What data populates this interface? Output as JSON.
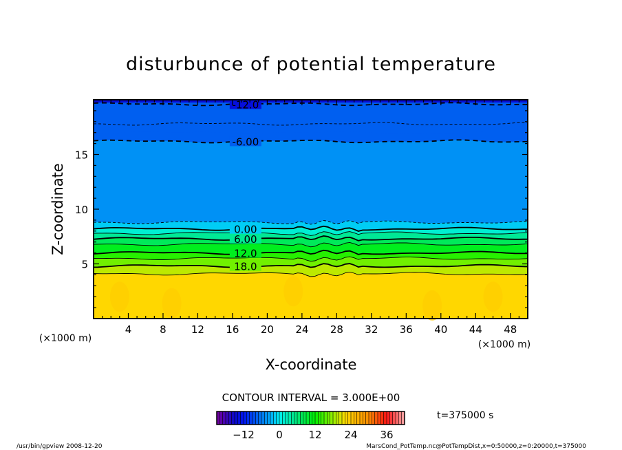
{
  "chart_data": {
    "type": "heatmap",
    "subtype": "filled-contour",
    "title": "disturbunce of potential temperature",
    "xlabel": "X-coordinate",
    "ylabel": "Z-coordinate",
    "x_unit": "(×1000 m)",
    "y_unit": "(×1000 m)",
    "xlim": [
      0,
      50
    ],
    "ylim": [
      0,
      20
    ],
    "xticks": [
      4,
      8,
      12,
      16,
      20,
      24,
      28,
      32,
      36,
      40,
      44,
      48
    ],
    "yticks": [
      5,
      10,
      15
    ],
    "contour_interval_label": "CONTOUR INTERVAL = 3.000E+00",
    "time_label": "t=375000 s",
    "contours": [
      {
        "level": -12,
        "z": 19.6,
        "dashed": true,
        "label": "-12.0"
      },
      {
        "level": -9,
        "z": 17.8,
        "dashed": true
      },
      {
        "level": -6,
        "z": 16.2,
        "dashed": true,
        "label": "-6.00"
      },
      {
        "level": -3,
        "z": 8.8,
        "dashed": true
      },
      {
        "level": 0,
        "z": 8.2,
        "dashed": false,
        "label": "0.00"
      },
      {
        "level": 3,
        "z": 7.8,
        "dashed": false
      },
      {
        "level": 6,
        "z": 7.3,
        "dashed": false,
        "label": "6.00"
      },
      {
        "level": 9,
        "z": 6.8,
        "dashed": false
      },
      {
        "level": 12,
        "z": 6.0,
        "dashed": false,
        "label": "12.0"
      },
      {
        "level": 15,
        "z": 5.5,
        "dashed": false
      },
      {
        "level": 18,
        "z": 4.8,
        "dashed": false,
        "label": "18.0"
      },
      {
        "level": 21,
        "z": 4.1,
        "dashed": false
      }
    ],
    "colorbar": {
      "min": -21,
      "max": 42,
      "ticks": [
        -12,
        0,
        12,
        24,
        36
      ]
    }
  },
  "footer": {
    "left": "/usr/bin/gpview   2008-12-20",
    "right": "MarsCond_PotTemp.nc@PotTempDist,x=0:50000,z=0:20000,t=375000"
  }
}
